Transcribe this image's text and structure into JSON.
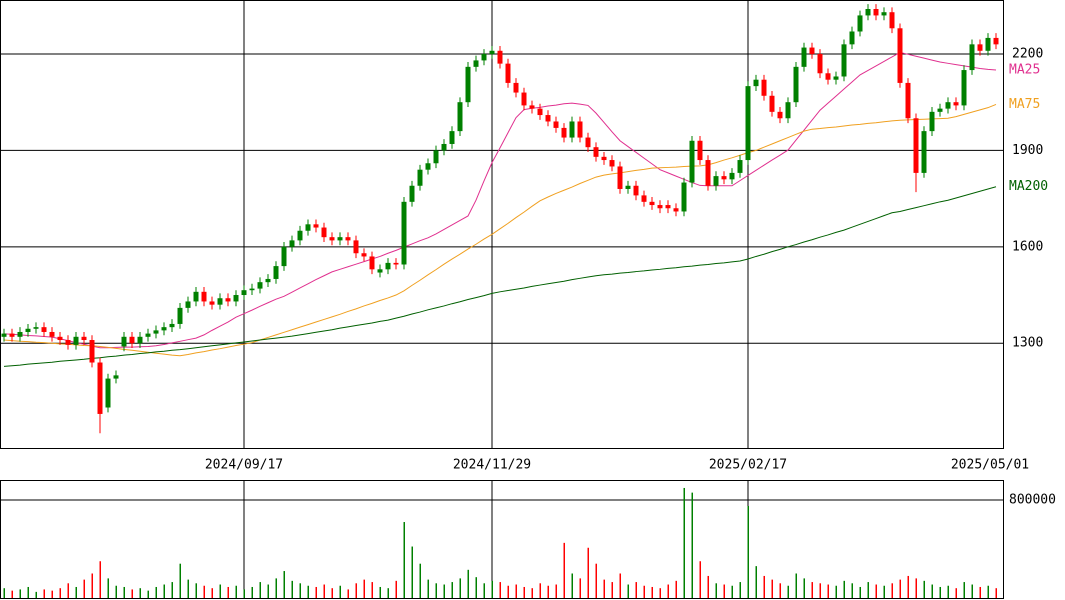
{
  "chart_data": [
    {
      "type": "candlestick",
      "up_color": "#008000",
      "down_color": "#ff0000",
      "grid": true,
      "ylim": [
        974,
        2368
      ],
      "yticks": [
        1300,
        1600,
        1900,
        2200
      ],
      "categories": [
        null,
        null,
        null,
        null,
        null,
        null,
        null,
        null,
        null,
        null,
        null,
        null,
        null,
        null,
        null,
        null,
        null,
        null,
        null,
        null,
        null,
        null,
        null,
        null,
        null,
        null,
        null,
        null,
        null,
        null,
        "2024/09/17",
        null,
        null,
        null,
        null,
        null,
        null,
        null,
        null,
        null,
        null,
        null,
        null,
        null,
        null,
        null,
        null,
        null,
        null,
        null,
        null,
        null,
        null,
        null,
        null,
        null,
        null,
        null,
        null,
        null,
        null,
        "2024/11/29",
        null,
        null,
        null,
        null,
        null,
        null,
        null,
        null,
        null,
        null,
        null,
        null,
        null,
        null,
        null,
        null,
        null,
        null,
        null,
        null,
        null,
        null,
        null,
        null,
        null,
        null,
        null,
        null,
        null,
        null,
        null,
        "2025/02/17",
        null,
        null,
        null,
        null,
        null,
        null,
        null,
        null,
        null,
        null,
        null,
        null,
        null,
        null,
        null,
        null,
        null,
        null,
        null,
        null,
        null,
        null,
        null,
        null,
        null,
        null,
        null,
        null,
        null,
        null,
        "2025/05/01"
      ],
      "open": [
        1320,
        1330,
        1320,
        1335,
        1345,
        1350,
        1335,
        1320,
        1310,
        1295,
        1320,
        1310,
        1240,
        1100,
        1190,
        1290,
        1320,
        1300,
        1320,
        1330,
        1340,
        1350,
        1360,
        1410,
        1430,
        1460,
        1430,
        1420,
        1440,
        1430,
        1450,
        1465,
        1470,
        1490,
        1500,
        1540,
        1600,
        1620,
        1650,
        1670,
        1660,
        1630,
        1620,
        1630,
        1620,
        1580,
        1570,
        1520,
        1530,
        1550,
        1545,
        1740,
        1790,
        1840,
        1860,
        1900,
        1920,
        1960,
        2050,
        2160,
        2180,
        2200,
        2210,
        2170,
        2110,
        2080,
        2040,
        2030,
        2010,
        1990,
        1970,
        1940,
        1990,
        1940,
        1910,
        1880,
        1870,
        1850,
        1780,
        1790,
        1760,
        1740,
        1730,
        1730,
        1720,
        1710,
        1800,
        1930,
        1870,
        1790,
        1820,
        1810,
        1830,
        1870,
        2100,
        2120,
        2070,
        2020,
        2000,
        2050,
        2160,
        2220,
        2200,
        2140,
        2120,
        2130,
        2230,
        2270,
        2320,
        2340,
        2320,
        2330,
        2280,
        2110,
        2000,
        1830,
        1960,
        2020,
        2030,
        2050,
        2040,
        2150,
        2230,
        2210,
        2250
      ],
      "high": [
        1345,
        1345,
        1350,
        1360,
        1365,
        1365,
        1350,
        1335,
        1325,
        1335,
        1335,
        1325,
        1255,
        1205,
        1215,
        1335,
        1335,
        1335,
        1345,
        1355,
        1365,
        1375,
        1425,
        1445,
        1475,
        1475,
        1445,
        1455,
        1455,
        1465,
        1480,
        1485,
        1505,
        1515,
        1555,
        1615,
        1635,
        1665,
        1685,
        1685,
        1675,
        1645,
        1645,
        1645,
        1635,
        1595,
        1585,
        1545,
        1565,
        1565,
        1755,
        1805,
        1855,
        1875,
        1915,
        1935,
        1975,
        2065,
        2175,
        2195,
        2215,
        2225,
        2225,
        2185,
        2125,
        2095,
        2055,
        2045,
        2025,
        2005,
        1985,
        2005,
        2005,
        1955,
        1925,
        1895,
        1885,
        1865,
        1805,
        1805,
        1775,
        1755,
        1745,
        1745,
        1735,
        1815,
        1945,
        1945,
        1885,
        1835,
        1835,
        1845,
        1885,
        2115,
        2135,
        2135,
        2085,
        2035,
        2065,
        2175,
        2235,
        2235,
        2215,
        2155,
        2145,
        2245,
        2285,
        2335,
        2355,
        2355,
        2345,
        2345,
        2295,
        2125,
        2015,
        1975,
        2035,
        2045,
        2065,
        2065,
        2165,
        2245,
        2245,
        2265,
        2265
      ],
      "low": [
        1305,
        1305,
        1305,
        1320,
        1330,
        1320,
        1305,
        1295,
        1280,
        1280,
        1295,
        1225,
        1020,
        1085,
        1175,
        1275,
        1285,
        1285,
        1305,
        1315,
        1325,
        1335,
        1345,
        1395,
        1415,
        1415,
        1405,
        1405,
        1415,
        1415,
        1435,
        1450,
        1455,
        1475,
        1485,
        1525,
        1585,
        1605,
        1635,
        1645,
        1615,
        1605,
        1605,
        1605,
        1565,
        1555,
        1515,
        1505,
        1515,
        1530,
        1530,
        1725,
        1775,
        1825,
        1845,
        1885,
        1905,
        1945,
        2035,
        2145,
        2165,
        2185,
        2155,
        2095,
        2065,
        2025,
        2015,
        1995,
        1975,
        1955,
        1925,
        1925,
        1925,
        1895,
        1865,
        1855,
        1835,
        1765,
        1765,
        1745,
        1725,
        1715,
        1705,
        1705,
        1695,
        1695,
        1785,
        1855,
        1775,
        1775,
        1795,
        1795,
        1815,
        1855,
        2085,
        2055,
        2005,
        1985,
        1985,
        2035,
        2145,
        2185,
        2125,
        2105,
        2105,
        2115,
        2215,
        2255,
        2305,
        2305,
        2305,
        2265,
        2095,
        1985,
        1770,
        1815,
        1945,
        2005,
        2015,
        2025,
        2025,
        2135,
        2195,
        2195,
        2215
      ],
      "close": [
        1330,
        1320,
        1335,
        1345,
        1350,
        1335,
        1320,
        1310,
        1295,
        1320,
        1310,
        1240,
        1080,
        1190,
        1200,
        1320,
        1300,
        1320,
        1330,
        1340,
        1350,
        1360,
        1410,
        1430,
        1460,
        1430,
        1420,
        1440,
        1430,
        1450,
        1465,
        1470,
        1490,
        1500,
        1540,
        1600,
        1620,
        1650,
        1670,
        1660,
        1630,
        1620,
        1630,
        1620,
        1580,
        1570,
        1530,
        1530,
        1550,
        1545,
        1740,
        1790,
        1840,
        1860,
        1900,
        1920,
        1960,
        2050,
        2160,
        2180,
        2200,
        2210,
        2170,
        2110,
        2080,
        2040,
        2030,
        2010,
        1990,
        1970,
        1940,
        1990,
        1940,
        1910,
        1880,
        1870,
        1850,
        1780,
        1790,
        1760,
        1740,
        1730,
        1720,
        1720,
        1710,
        1800,
        1930,
        1870,
        1790,
        1820,
        1810,
        1830,
        1870,
        2100,
        2120,
        2070,
        2020,
        2000,
        2050,
        2160,
        2220,
        2200,
        2140,
        2120,
        2130,
        2230,
        2270,
        2320,
        2340,
        2320,
        2330,
        2280,
        2110,
        2000,
        1830,
        1960,
        2020,
        2030,
        2050,
        2040,
        2150,
        2230,
        2210,
        2250,
        2230
      ],
      "series": [
        {
          "name": "MA25",
          "color": "#e0308f",
          "values": [
            1329,
            1328,
            1326,
            1324,
            1323,
            1321,
            1319,
            1314,
            1308,
            1302,
            1297,
            1291,
            1286,
            1286,
            1287,
            1288,
            1288,
            1289,
            1290,
            1292,
            1296,
            1301,
            1306,
            1311,
            1316,
            1326,
            1340,
            1353,
            1366,
            1381,
            1392,
            1403,
            1415,
            1426,
            1437,
            1446,
            1459,
            1472,
            1485,
            1498,
            1510,
            1522,
            1530,
            1538,
            1546,
            1554,
            1562,
            1570,
            1580,
            1589,
            1599,
            1609,
            1619,
            1628,
            1640,
            1654,
            1668,
            1682,
            1696,
            1745,
            1805,
            1862,
            1908,
            1955,
            2002,
            2027,
            2031,
            2034,
            2038,
            2041,
            2045,
            2047,
            2044,
            2040,
            2016,
            1987,
            1958,
            1930,
            1912,
            1894,
            1876,
            1858,
            1840,
            1830,
            1820,
            1810,
            1800,
            1791,
            1790,
            1790,
            1790,
            1790,
            1806,
            1822,
            1838,
            1854,
            1870,
            1885,
            1901,
            1932,
            1963,
            1994,
            2025,
            2047,
            2069,
            2091,
            2113,
            2135,
            2149,
            2163,
            2177,
            2191,
            2205,
            2199,
            2193,
            2187,
            2181,
            2175,
            2171,
            2167,
            2163,
            2159,
            2155,
            2152,
            2150
          ]
        },
        {
          "name": "MA75",
          "color": "#f0a020",
          "values": [
            1310,
            1308,
            1306,
            1305,
            1303,
            1302,
            1300,
            1298,
            1297,
            1295,
            1293,
            1292,
            1290,
            1287,
            1284,
            1281,
            1278,
            1275,
            1272,
            1269,
            1266,
            1263,
            1261,
            1265,
            1270,
            1274,
            1279,
            1283,
            1288,
            1293,
            1297,
            1302,
            1310,
            1318,
            1326,
            1334,
            1342,
            1350,
            1358,
            1366,
            1374,
            1382,
            1390,
            1399,
            1407,
            1416,
            1424,
            1433,
            1441,
            1450,
            1463,
            1480,
            1496,
            1513,
            1529,
            1546,
            1562,
            1577,
            1593,
            1608,
            1624,
            1639,
            1656,
            1673,
            1691,
            1708,
            1726,
            1743,
            1755,
            1766,
            1776,
            1786,
            1797,
            1807,
            1817,
            1823,
            1827,
            1830,
            1834,
            1838,
            1841,
            1845,
            1846,
            1847,
            1848,
            1850,
            1851,
            1852,
            1855,
            1862,
            1870,
            1877,
            1885,
            1893,
            1900,
            1910,
            1920,
            1930,
            1940,
            1950,
            1960,
            1966,
            1968,
            1971,
            1973,
            1976,
            1979,
            1981,
            1984,
            1986,
            1989,
            1992,
            1994,
            1995,
            1996,
            1997,
            1998,
            1999,
            2000,
            2005,
            2012,
            2019,
            2026,
            2033,
            2043
          ]
        },
        {
          "name": "MA200",
          "color": "#006000",
          "values": [
            1228,
            1230,
            1232,
            1235,
            1237,
            1239,
            1241,
            1244,
            1246,
            1248,
            1250,
            1253,
            1255,
            1258,
            1260,
            1263,
            1265,
            1268,
            1270,
            1273,
            1275,
            1278,
            1280,
            1283,
            1286,
            1289,
            1292,
            1295,
            1298,
            1301,
            1304,
            1307,
            1310,
            1313,
            1316,
            1319,
            1322,
            1326,
            1330,
            1334,
            1338,
            1342,
            1347,
            1351,
            1355,
            1359,
            1363,
            1368,
            1372,
            1378,
            1384,
            1391,
            1397,
            1404,
            1410,
            1416,
            1423,
            1429,
            1436,
            1442,
            1448,
            1455,
            1460,
            1464,
            1468,
            1472,
            1477,
            1481,
            1485,
            1489,
            1493,
            1498,
            1502,
            1506,
            1510,
            1513,
            1515,
            1518,
            1520,
            1523,
            1525,
            1528,
            1530,
            1533,
            1535,
            1538,
            1540,
            1543,
            1545,
            1548,
            1550,
            1553,
            1556,
            1562,
            1570,
            1577,
            1585,
            1592,
            1600,
            1607,
            1615,
            1622,
            1630,
            1637,
            1645,
            1652,
            1661,
            1670,
            1679,
            1688,
            1697,
            1706,
            1710,
            1716,
            1722,
            1728,
            1734,
            1740,
            1745,
            1752,
            1759,
            1766,
            1773,
            1780,
            1787
          ]
        }
      ]
    },
    {
      "type": "bar",
      "grid": true,
      "ylim": [
        0,
        963000
      ],
      "yticks": [
        800000
      ],
      "values": [
        80000,
        60000,
        70000,
        90000,
        50000,
        70000,
        60000,
        80000,
        120000,
        90000,
        150000,
        200000,
        300000,
        160000,
        100000,
        90000,
        70000,
        80000,
        60000,
        90000,
        110000,
        130000,
        280000,
        150000,
        120000,
        100000,
        80000,
        110000,
        90000,
        100000,
        70000,
        90000,
        130000,
        110000,
        160000,
        220000,
        140000,
        120000,
        100000,
        90000,
        110000,
        80000,
        100000,
        70000,
        120000,
        150000,
        130000,
        90000,
        80000,
        140000,
        620000,
        420000,
        280000,
        150000,
        120000,
        110000,
        130000,
        160000,
        230000,
        170000,
        120000,
        140000,
        130000,
        100000,
        110000,
        90000,
        80000,
        120000,
        100000,
        110000,
        450000,
        200000,
        160000,
        410000,
        280000,
        150000,
        130000,
        200000,
        110000,
        130000,
        100000,
        90000,
        80000,
        110000,
        140000,
        898000,
        860000,
        300000,
        180000,
        120000,
        110000,
        100000,
        130000,
        751000,
        260000,
        180000,
        150000,
        120000,
        100000,
        200000,
        160000,
        130000,
        120000,
        110000,
        100000,
        140000,
        120000,
        90000,
        130000,
        110000,
        100000,
        120000,
        150000,
        180000,
        160000,
        140000,
        110000,
        90000,
        100000,
        80000,
        130000,
        110000,
        90000,
        100000,
        80000
      ]
    }
  ]
}
